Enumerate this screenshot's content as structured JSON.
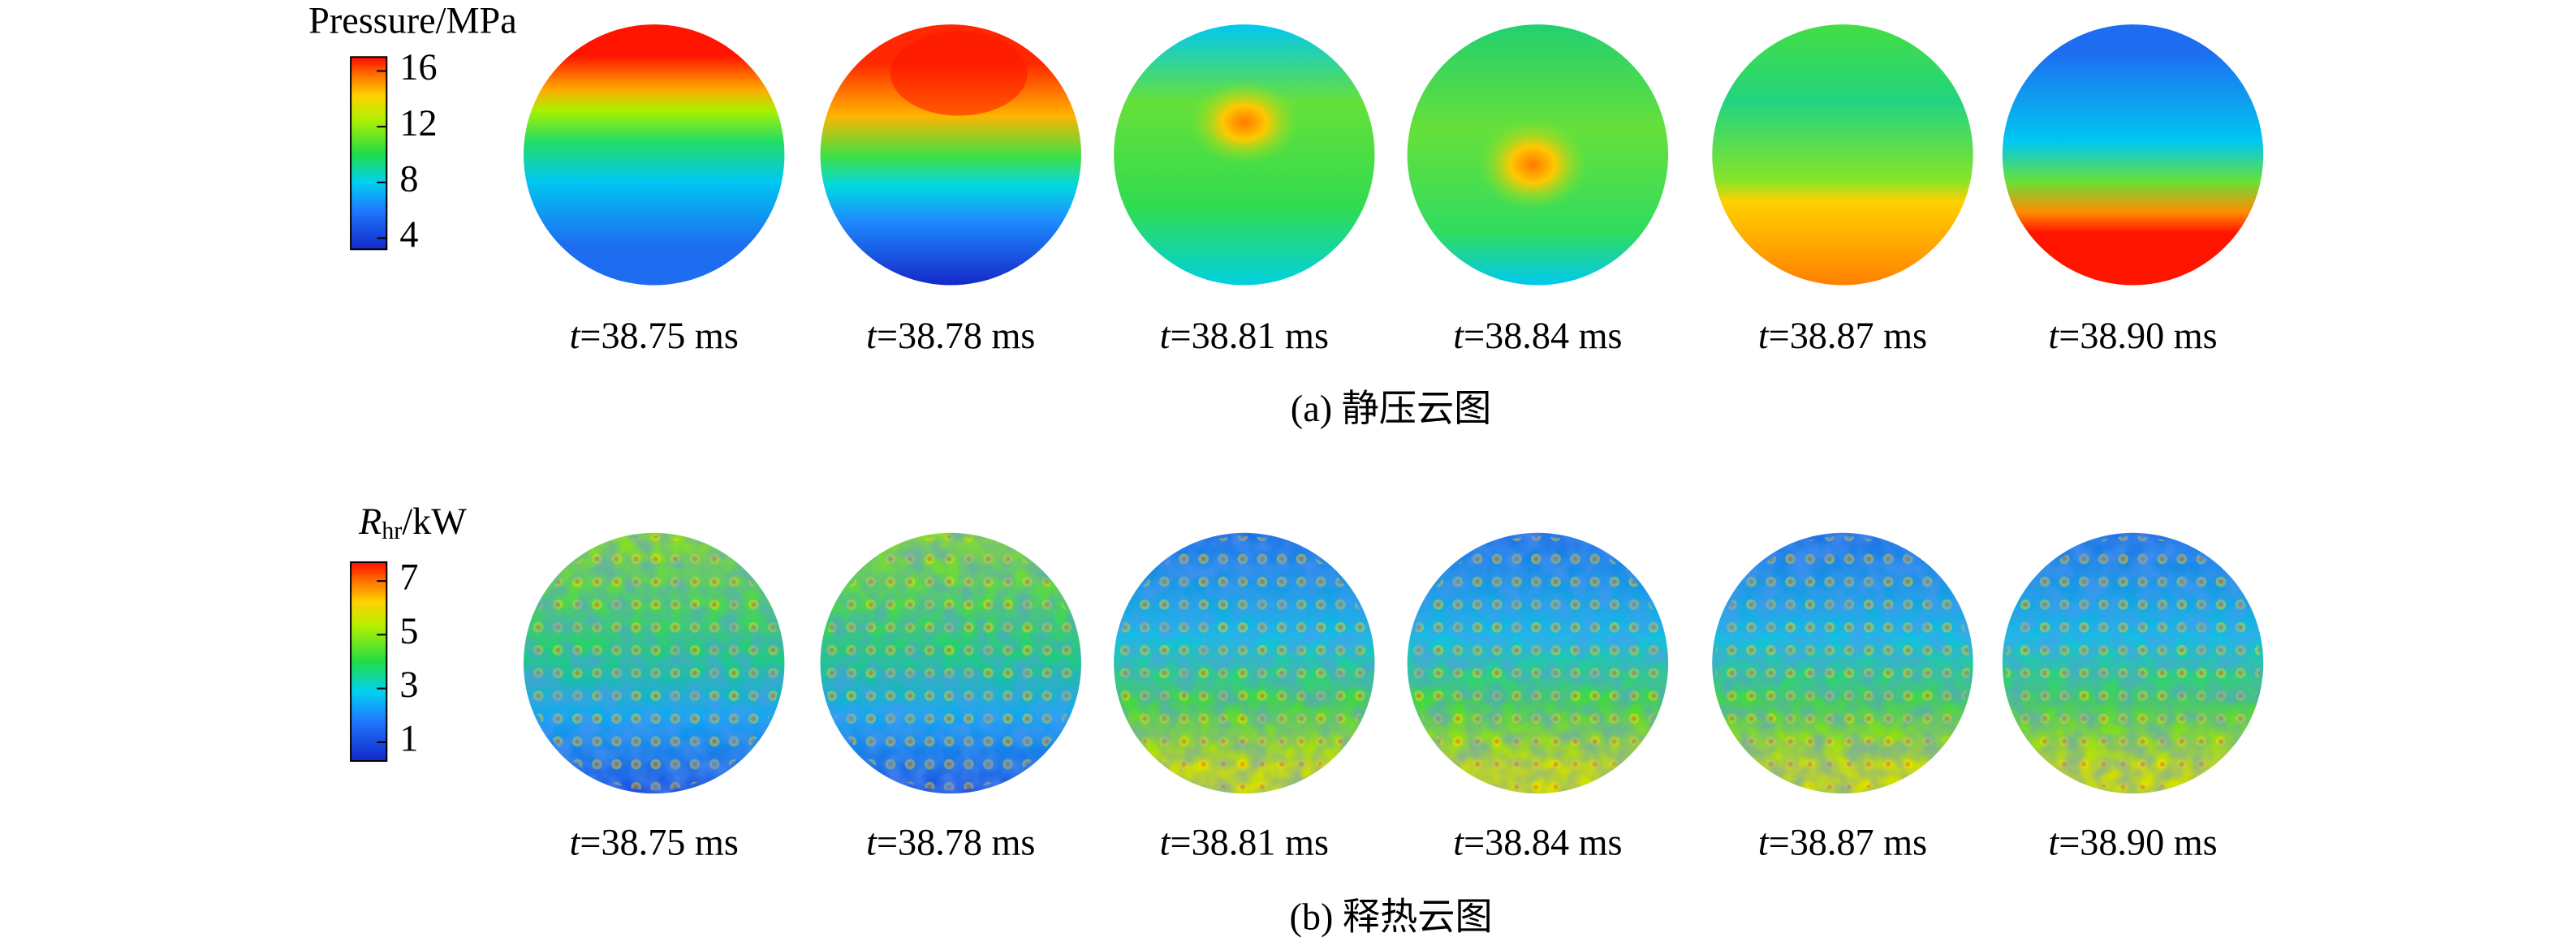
{
  "panels": [
    {
      "colorbar": {
        "label": "Pressure/MPa",
        "range": [
          3.2,
          17
        ],
        "ticks": [
          16,
          12,
          8,
          4
        ]
      },
      "time_symbol": "t",
      "frames": [
        "=38.75 ms",
        "=38.78 ms",
        "=38.81 ms",
        "=38.84 ms",
        "=38.87 ms",
        "=38.90 ms"
      ],
      "caption": "(a) 静压云图"
    },
    {
      "colorbar": {
        "symbol": "R",
        "subscript": "hr",
        "unit": "/kW",
        "range": [
          0.3,
          7.7
        ],
        "ticks": [
          7,
          5,
          3,
          1
        ]
      },
      "time_symbol": "t",
      "frames": [
        "=38.75 ms",
        "=38.78 ms",
        "=38.81 ms",
        "=38.84 ms",
        "=38.87 ms",
        "=38.90 ms"
      ],
      "caption": "(b) 释热云图"
    }
  ]
}
